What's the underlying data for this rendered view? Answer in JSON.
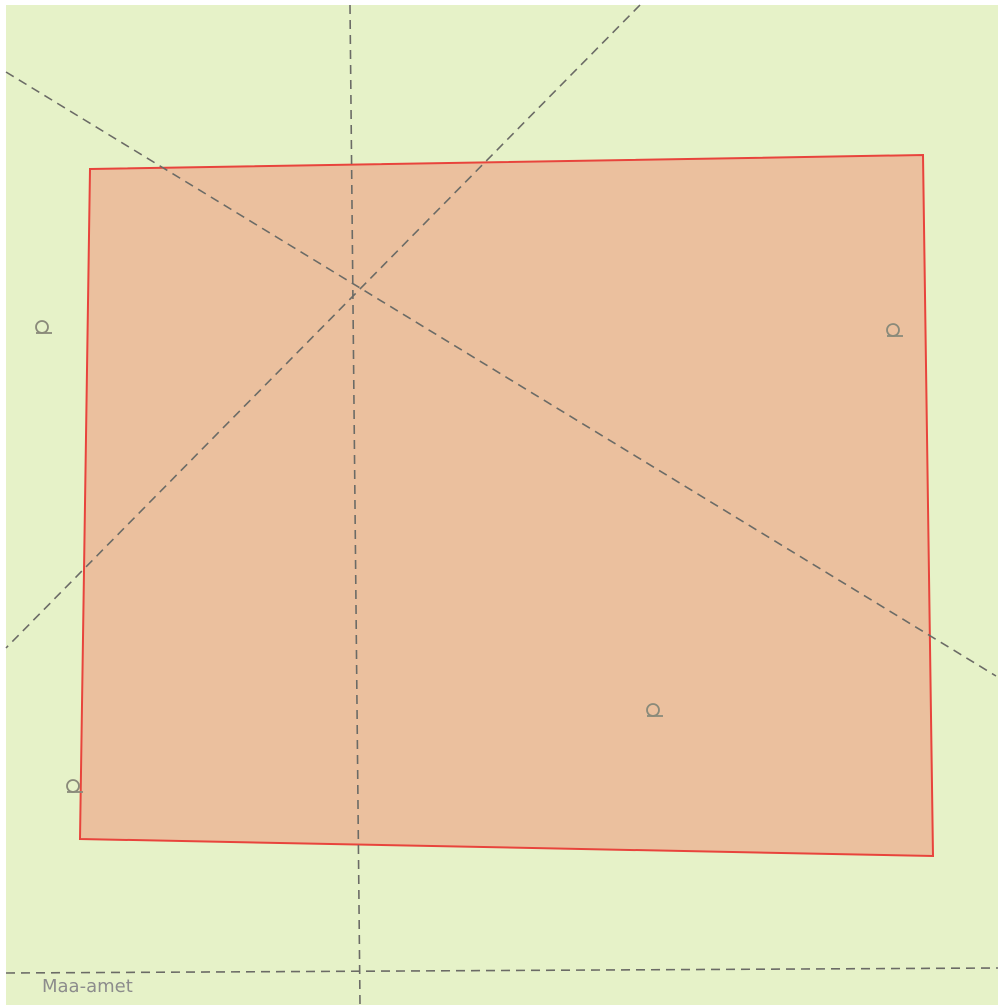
{
  "attribution": "Maa-amet"
}
